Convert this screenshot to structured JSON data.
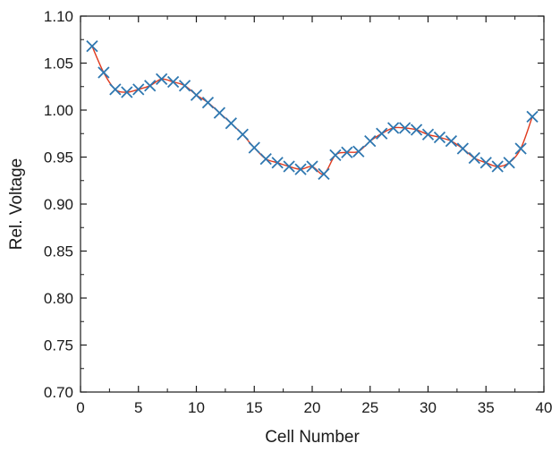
{
  "colors": {
    "marker": "#2e77b0",
    "fit_line": "#e03a1e",
    "axis": "#1a1a1a"
  },
  "chart_data": {
    "type": "scatter",
    "title": "",
    "xlabel": "Cell Number",
    "ylabel": "Rel. Voltage",
    "xlim": [
      0,
      40
    ],
    "ylim": [
      0.7,
      1.1
    ],
    "x_ticks": [
      "0",
      "5",
      "10",
      "15",
      "20",
      "25",
      "30",
      "35",
      "40"
    ],
    "y_ticks": [
      "0.70",
      "0.75",
      "0.80",
      "0.85",
      "0.90",
      "0.95",
      "1.00",
      "1.05",
      "1.10"
    ],
    "grid": false,
    "legend": "none",
    "series": [
      {
        "marker": "x",
        "x": [
          1,
          2,
          3,
          4,
          5,
          6,
          7,
          8,
          9,
          10,
          11,
          12,
          13,
          14,
          15,
          16,
          17,
          18,
          19,
          20,
          21,
          22,
          23,
          24,
          25,
          26,
          27,
          28,
          29,
          30,
          31,
          32,
          33,
          34,
          35,
          36,
          37,
          38,
          39
        ],
        "values": [
          1.068,
          1.04,
          1.022,
          1.019,
          1.022,
          1.026,
          1.033,
          1.03,
          1.026,
          1.016,
          1.008,
          0.997,
          0.986,
          0.974,
          0.96,
          0.948,
          0.944,
          0.94,
          0.937,
          0.94,
          0.932,
          0.952,
          0.955,
          0.956,
          0.967,
          0.975,
          0.981,
          0.981,
          0.979,
          0.974,
          0.971,
          0.967,
          0.959,
          0.949,
          0.944,
          0.94,
          0.944,
          0.959,
          0.993
        ]
      }
    ]
  }
}
